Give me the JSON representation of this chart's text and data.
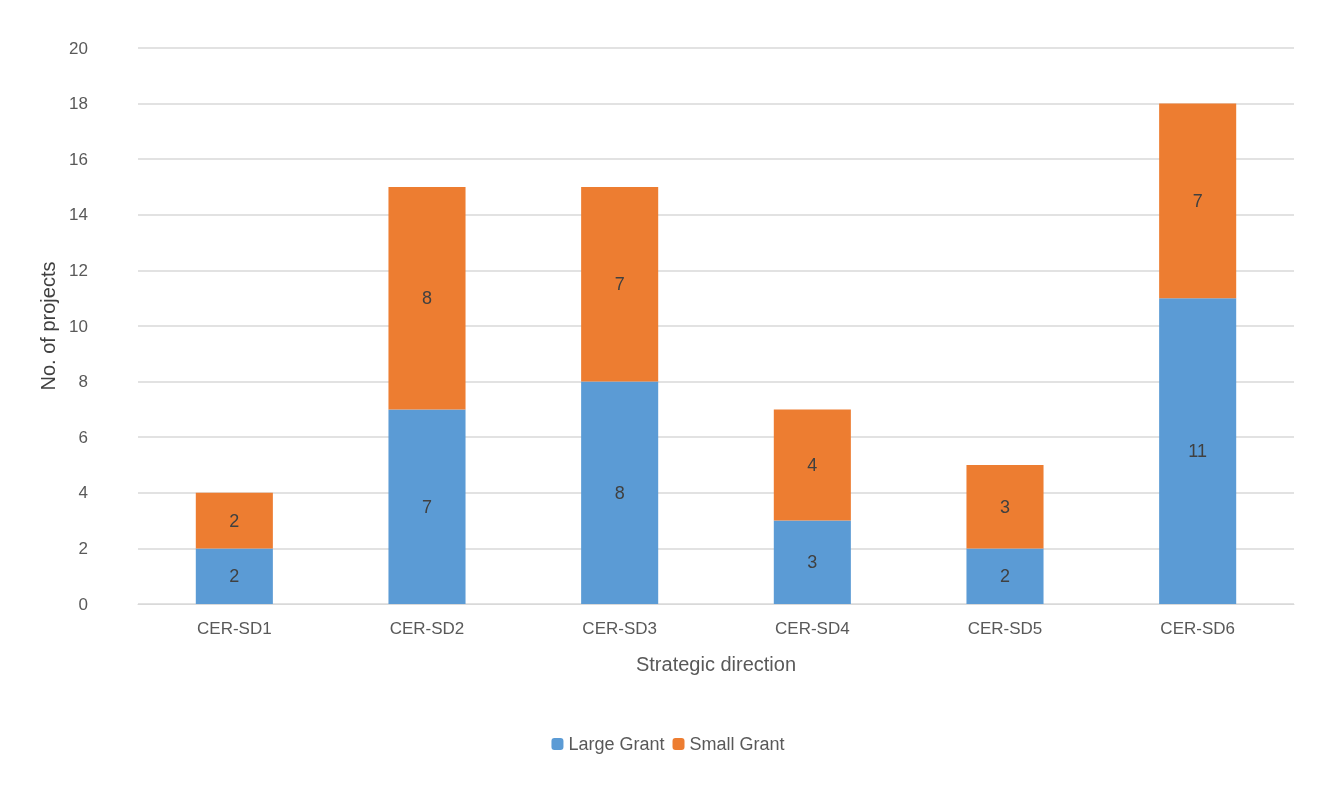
{
  "chart_data": {
    "type": "bar",
    "stacked": true,
    "xlabel": "Strategic direction",
    "ylabel": "No. of projects",
    "categories": [
      "CER-SD1",
      "CER-SD2",
      "CER-SD3",
      "CER-SD4",
      "CER-SD5",
      "CER-SD6"
    ],
    "series": [
      {
        "name": "Large Grant",
        "color": "#5b9bd5",
        "values": [
          2,
          7,
          8,
          3,
          2,
          11
        ]
      },
      {
        "name": "Small Grant",
        "color": "#ed7d31",
        "values": [
          2,
          8,
          7,
          4,
          3,
          7
        ]
      }
    ],
    "ylim": [
      0,
      20
    ],
    "yticks": [
      0,
      2,
      4,
      6,
      8,
      10,
      12,
      14,
      16,
      18,
      20
    ],
    "grid": "y",
    "legend": "bottom",
    "data_labels": true
  }
}
